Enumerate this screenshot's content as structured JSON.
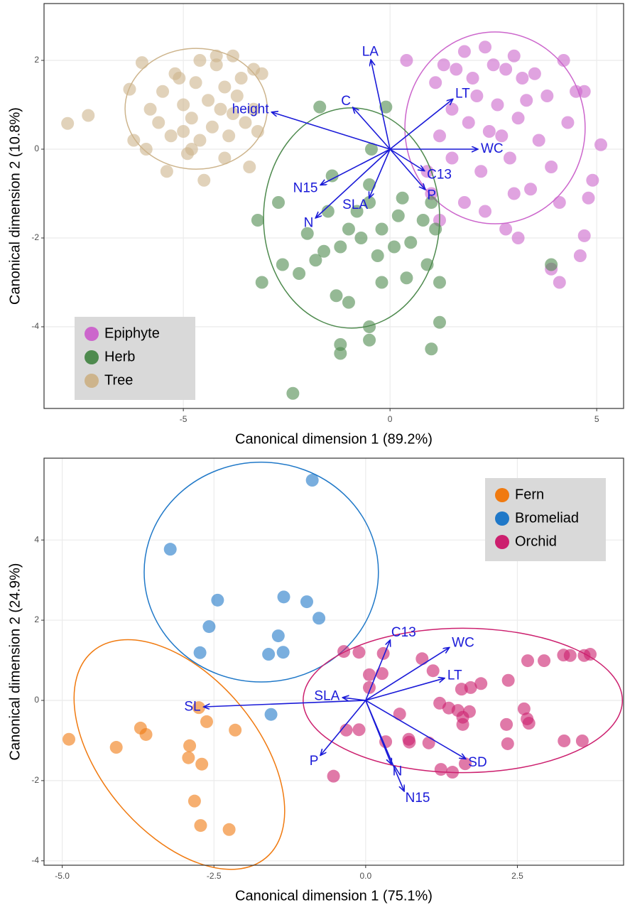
{
  "chart_data": [
    {
      "type": "scatter",
      "x_label": "Canonical dimension 1 (89.2%)",
      "y_label": "Canonical dimension 2 (10.8%)",
      "xlim": [
        -8.37,
        5.65
      ],
      "ylim": [
        -5.84,
        3.28
      ],
      "xticks": [
        -5,
        0,
        5
      ],
      "yticks": [
        -4,
        -2,
        0,
        2
      ],
      "grid": true,
      "legend": "bottom-left",
      "series": [
        {
          "name": "Epiphyte",
          "color": "#cc66cc",
          "x": [
            0.4,
            1.1,
            1.3,
            1.6,
            1.8,
            2.0,
            2.3,
            2.5,
            2.8,
            3.0,
            3.2,
            3.5,
            3.8,
            4.2,
            4.5,
            4.7,
            5.1,
            4.9,
            4.8,
            4.7,
            4.6,
            4.1,
            3.9,
            3.1,
            2.8,
            2.3,
            1.8,
            1.2,
            1.0,
            0.9,
            1.2,
            1.5,
            1.9,
            2.1,
            2.4,
            2.6,
            2.9,
            3.1,
            3.3,
            3.6,
            3.9,
            4.3,
            4.1,
            3.4,
            2.2,
            1.5,
            2.7,
            3.0
          ],
          "y": [
            2.0,
            1.5,
            1.9,
            1.8,
            2.2,
            1.6,
            2.3,
            1.9,
            1.8,
            2.1,
            1.6,
            1.7,
            1.2,
            2.0,
            1.3,
            1.3,
            0.1,
            -0.7,
            -1.1,
            -1.95,
            -2.4,
            -3.0,
            -2.7,
            -2.0,
            -1.8,
            -1.4,
            -1.2,
            -1.6,
            -1.0,
            -0.5,
            0.3,
            0.9,
            0.6,
            1.2,
            0.4,
            1.0,
            -0.2,
            0.7,
            1.1,
            0.2,
            -0.4,
            0.6,
            -1.2,
            -0.9,
            -0.5,
            -0.2,
            0.3,
            -1.0
          ],
          "ellipse": {
            "cx": 2.54,
            "cy": 0.48,
            "rx": 2.18,
            "ry": 2.16,
            "angle": 0
          }
        },
        {
          "name": "Herb",
          "color": "#4e8a4e",
          "x": [
            -2.35,
            -1.2,
            -1.2,
            -0.5,
            -0.5,
            1.0,
            1.2,
            -3.1,
            -1.3,
            -1.0,
            -0.2,
            0.4,
            0.9,
            1.2,
            -3.2,
            -2.7,
            -2.6,
            -2.2,
            -1.8,
            -1.6,
            -1.2,
            -1.0,
            -0.8,
            -0.7,
            -0.5,
            -0.3,
            -0.2,
            0.1,
            0.2,
            0.3,
            0.5,
            0.8,
            1.0,
            1.1,
            -1.7,
            -0.1,
            -0.5,
            -1.5,
            -2.0,
            3.9,
            -0.45,
            -1.4
          ],
          "y": [
            -5.5,
            -4.6,
            -4.4,
            -4.3,
            -4.0,
            -4.5,
            -3.9,
            -3.0,
            -3.3,
            -3.45,
            -3.0,
            -2.9,
            -2.6,
            -3.0,
            -1.6,
            -1.2,
            -2.6,
            -2.8,
            -2.5,
            -2.3,
            -2.2,
            -1.8,
            -1.4,
            -2.0,
            -1.2,
            -2.4,
            -1.8,
            -2.2,
            -1.5,
            -1.1,
            -2.1,
            -1.6,
            -1.2,
            -1.8,
            0.95,
            0.95,
            -0.8,
            -1.4,
            -1.9,
            -2.6,
            0.0,
            -0.6
          ],
          "ellipse": {
            "cx": -0.93,
            "cy": -1.55,
            "rx": 2.13,
            "ry": 2.48,
            "angle": 0
          }
        },
        {
          "name": "Tree",
          "color": "#cdb48c",
          "x": [
            -7.8,
            -7.3,
            -6.3,
            -6.0,
            -6.2,
            -5.9,
            -5.8,
            -5.6,
            -5.5,
            -5.4,
            -5.3,
            -5.2,
            -5.0,
            -5.0,
            -4.9,
            -4.8,
            -4.7,
            -4.6,
            -4.6,
            -4.5,
            -4.4,
            -4.3,
            -4.2,
            -4.1,
            -4.0,
            -4.0,
            -3.9,
            -3.8,
            -3.8,
            -3.7,
            -3.6,
            -3.5,
            -3.4,
            -3.3,
            -3.3,
            -3.1,
            -3.2,
            -4.2,
            -5.1,
            -4.8
          ],
          "y": [
            0.58,
            0.76,
            1.35,
            1.95,
            0.2,
            0.0,
            0.9,
            0.6,
            1.3,
            -0.5,
            0.3,
            1.7,
            1.0,
            0.4,
            -0.1,
            0.7,
            1.5,
            2.0,
            0.2,
            -0.7,
            1.1,
            0.5,
            1.9,
            0.9,
            1.4,
            -0.2,
            0.3,
            2.1,
            0.8,
            1.2,
            1.6,
            0.6,
            -0.4,
            1.8,
            0.9,
            1.7,
            0.4,
            2.1,
            1.6,
            0.0
          ],
          "ellipse": {
            "cx": -4.69,
            "cy": 0.91,
            "rx": 1.72,
            "ry": 1.36,
            "angle": 0
          }
        }
      ],
      "arrows": [
        {
          "label": "LA",
          "x": -0.46,
          "y": 2.0
        },
        {
          "label": "C",
          "x": -0.89,
          "y": 0.93
        },
        {
          "label": "height",
          "x": -2.85,
          "y": 0.83
        },
        {
          "label": "LT",
          "x": 1.51,
          "y": 1.12
        },
        {
          "label": "WC",
          "x": 2.11,
          "y": 0
        },
        {
          "label": "C13",
          "x": 0.82,
          "y": -0.48
        },
        {
          "label": "P",
          "x": 0.84,
          "y": -0.9
        },
        {
          "label": "SLA",
          "x": -0.5,
          "y": -1.09
        },
        {
          "label": "N15",
          "x": -1.67,
          "y": -0.8
        },
        {
          "label": "N",
          "x": -1.79,
          "y": -1.54
        }
      ]
    },
    {
      "type": "scatter",
      "x_label": "Canonical dimension 1 (75.1%)",
      "y_label": "Canonical dimension 2 (24.9%)",
      "xlim": [
        -5.3,
        4.25
      ],
      "ylim": [
        -4.11,
        6.04
      ],
      "xticks": [
        {
          "value": -5,
          "label": "-5.0"
        },
        -2.5,
        {
          "value": 0,
          "label": "0.0"
        },
        2.5
      ],
      "yticks": [
        -4,
        -2,
        0,
        2,
        4
      ],
      "grid": true,
      "legend": "top-right",
      "series": [
        {
          "name": "Fern",
          "color": "#f07a10",
          "x": [
            -4.89,
            -4.11,
            -3.71,
            -3.62,
            -2.9,
            -2.92,
            -2.7,
            -2.82,
            -2.72,
            -2.25,
            -2.15,
            -2.62,
            -2.75
          ],
          "y": [
            -0.97,
            -1.17,
            -0.69,
            -0.85,
            -1.13,
            -1.43,
            -1.59,
            -2.51,
            -3.12,
            -3.22,
            -0.74,
            -0.53,
            -0.18
          ],
          "ellipse": {
            "cx": -3.07,
            "cy": -1.35,
            "rx": 2.22,
            "ry": 1.95,
            "angle": 50
          }
        },
        {
          "name": "Bromeliad",
          "color": "#1f78c8",
          "x": [
            -0.88,
            -3.22,
            -2.44,
            -2.58,
            -2.73,
            -1.6,
            -1.44,
            -1.35,
            -0.97,
            -0.77,
            -1.36,
            -1.56
          ],
          "y": [
            5.49,
            3.77,
            2.5,
            1.84,
            1.19,
            1.15,
            1.61,
            2.58,
            2.46,
            2.05,
            1.2,
            -0.35
          ],
          "ellipse": {
            "cx": -1.72,
            "cy": 3.2,
            "rx": 1.93,
            "ry": 2.74,
            "angle": 0
          }
        },
        {
          "name": "Orchid",
          "color": "#cc1f6e",
          "x": [
            -0.36,
            -0.11,
            0.29,
            0.06,
            0.27,
            0.06,
            -0.32,
            -0.11,
            -0.53,
            0.33,
            0.56,
            0.71,
            0.72,
            1.04,
            0.93,
            1.11,
            1.24,
            1.43,
            1.64,
            1.22,
            1.37,
            1.58,
            1.73,
            1.9,
            1.52,
            1.6,
            1.71,
            1.6,
            2.35,
            2.67,
            2.94,
            2.61,
            2.66,
            2.69,
            2.34,
            2.32,
            3.26,
            3.37,
            3.57,
            3.27,
            3.7,
            3.6
          ],
          "y": [
            1.22,
            1.2,
            1.17,
            0.64,
            0.67,
            0.32,
            -0.74,
            -0.73,
            -1.89,
            -1.03,
            -0.34,
            -0.97,
            -1.04,
            -1.06,
            1.04,
            0.74,
            -1.72,
            -1.79,
            -1.58,
            -0.07,
            -0.19,
            0.28,
            0.32,
            0.42,
            -0.25,
            -0.42,
            -0.28,
            -0.6,
            0.5,
            0.99,
            0.99,
            -0.21,
            -0.46,
            -0.57,
            -1.08,
            -0.6,
            1.13,
            1.12,
            -1.01,
            -1.01,
            1.15,
            1.12
          ],
          "ellipse": {
            "cx": 1.6,
            "cy": 0,
            "rx": 2.63,
            "ry": 1.8,
            "angle": 0
          }
        }
      ],
      "arrows": [
        {
          "label": "C13",
          "x": 0.4,
          "y": 1.49
        },
        {
          "label": "WC",
          "x": 1.37,
          "y": 1.31
        },
        {
          "label": "LT",
          "x": 1.29,
          "y": 0.55
        },
        {
          "label": "SLA",
          "x": -0.37,
          "y": 0.07
        },
        {
          "label": "SL",
          "x": -2.66,
          "y": -0.16
        },
        {
          "label": "P",
          "x": -0.74,
          "y": -1.36
        },
        {
          "label": "N",
          "x": 0.42,
          "y": -1.58
        },
        {
          "label": "N15",
          "x": 0.63,
          "y": -2.25
        },
        {
          "label": "SD",
          "x": 1.64,
          "y": -1.45
        }
      ]
    }
  ]
}
